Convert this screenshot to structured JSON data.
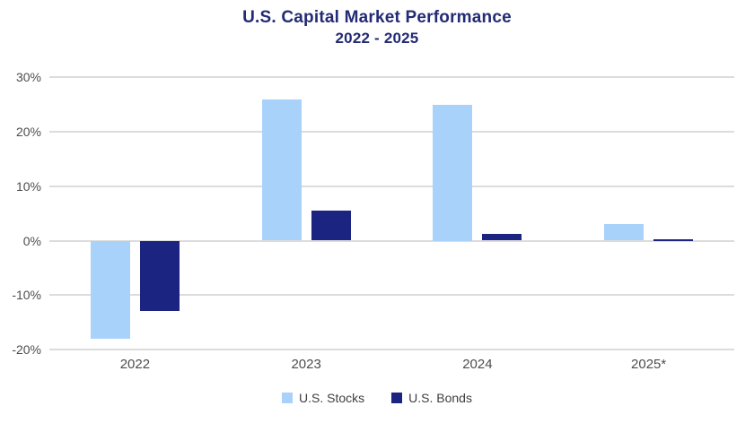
{
  "title": "U.S. Capital Market Performance",
  "subtitle": "2022 - 2025",
  "colors": {
    "title_text": "#232b74",
    "axis_label_text": "#4d4d4d",
    "legend_text": "#3f3f3f",
    "gridline": "#dcdcdc",
    "stocks": "#a9d2fb",
    "bonds": "#1b2481",
    "background": "#ffffff"
  },
  "chart_data": {
    "type": "bar",
    "title": "U.S. Capital Market Performance",
    "subtitle": "2022 - 2025",
    "categories": [
      "2022",
      "2023",
      "2024",
      "2025*"
    ],
    "series": [
      {
        "name": "U.S. Stocks",
        "color": "#a9d2fb",
        "values": [
          -18,
          26,
          25,
          3
        ]
      },
      {
        "name": "U.S. Bonds",
        "color": "#1b2481",
        "values": [
          -13,
          5.5,
          1.2,
          0.3
        ]
      }
    ],
    "xlabel": "",
    "ylabel": "",
    "y_ticks": [
      30,
      20,
      10,
      0,
      -10,
      -20
    ],
    "y_tick_labels": [
      "30%",
      "20%",
      "10%",
      "0%",
      "-10%",
      "-20%"
    ],
    "ylim": [
      -20,
      30
    ],
    "grid": true,
    "legend_position": "bottom"
  }
}
